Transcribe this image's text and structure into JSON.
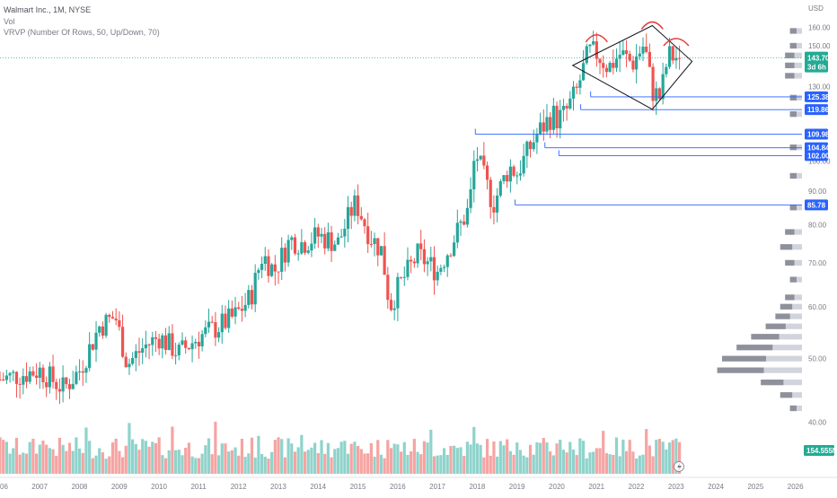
{
  "header": {
    "title": "Walmart Inc., 1M, NYSE",
    "vol_label": "Vol",
    "vrvp_label": "VRVP (Number Of Rows, 50, Up/Down, 70)"
  },
  "price_axis": {
    "currency": "USD",
    "ticks": [
      {
        "value": 160,
        "label": "160.00"
      },
      {
        "value": 150,
        "label": "150.00"
      },
      {
        "value": 130,
        "label": "130.00"
      },
      {
        "value": 100,
        "label": "100.00"
      },
      {
        "value": 90,
        "label": "90.00"
      },
      {
        "value": 80,
        "label": "80.00"
      },
      {
        "value": 70,
        "label": "70.00"
      },
      {
        "value": 60,
        "label": "60.00"
      },
      {
        "value": 50,
        "label": "50.00"
      },
      {
        "value": 40,
        "label": "40.00"
      }
    ]
  },
  "current_price": {
    "value": 143.7,
    "label": "143.70",
    "countdown": "3d 6h",
    "color": "#22ab94"
  },
  "volume_tag": {
    "label": "154.555M",
    "color": "#22ab94"
  },
  "time_axis": {
    "labels": [
      {
        "year": 2006,
        "label": "06"
      },
      {
        "year": 2007,
        "label": "2007"
      },
      {
        "year": 2008,
        "label": "2008"
      },
      {
        "year": 2009,
        "label": "2009"
      },
      {
        "year": 2010,
        "label": "2010"
      },
      {
        "year": 2011,
        "label": "2011"
      },
      {
        "year": 2012,
        "label": "2012"
      },
      {
        "year": 2013,
        "label": "2013"
      },
      {
        "year": 2014,
        "label": "2014"
      },
      {
        "year": 2015,
        "label": "2015"
      },
      {
        "year": 2016,
        "label": "2016"
      },
      {
        "year": 2017,
        "label": "2017"
      },
      {
        "year": 2018,
        "label": "2018"
      },
      {
        "year": 2019,
        "label": "2019"
      },
      {
        "year": 2020,
        "label": "2020"
      },
      {
        "year": 2021,
        "label": "2021"
      },
      {
        "year": 2022,
        "label": "2022"
      },
      {
        "year": 2023,
        "label": "2023"
      },
      {
        "year": 2024,
        "label": "2024"
      },
      {
        "year": 2025,
        "label": "2025"
      },
      {
        "year": 2026,
        "label": "2026"
      }
    ]
  },
  "colors": {
    "up": "#26a69a",
    "down": "#ef5350",
    "vol_up": "#8fd3cb",
    "vol_down": "#f5a4a2",
    "level": "#2962ff",
    "tag": "#2962ff",
    "pattern": "#131722",
    "arc": "#e53935",
    "profile_light": "#d1d4dc",
    "profile_dark": "#868993"
  },
  "levels": [
    {
      "value": 125.38,
      "label": "125.38",
      "from": 2020.85
    },
    {
      "value": 119.86,
      "label": "119.86",
      "from": 2020.6
    },
    {
      "value": 109.98,
      "label": "109.98",
      "from": 2017.95
    },
    {
      "value": 104.84,
      "label": "104.84",
      "from": 2019.7
    },
    {
      "value": 102.0,
      "label": "102.00",
      "from": 2020.05
    },
    {
      "value": 85.78,
      "label": "85.78",
      "from": 2018.95
    }
  ],
  "chart_data": {
    "type": "candlestick",
    "symbol": "Walmart Inc.",
    "interval": "1M",
    "exchange": "NYSE",
    "y_scale": "log",
    "ylim": [
      38,
      170
    ],
    "xlim": [
      2006.0,
      2026.05
    ],
    "anchors": [
      [
        2006.0,
        46.5
      ],
      [
        2007.0,
        48
      ],
      [
        2007.6,
        45
      ],
      [
        2008.0,
        48
      ],
      [
        2008.5,
        56
      ],
      [
        2008.9,
        58
      ],
      [
        2009.2,
        49
      ],
      [
        2009.6,
        52
      ],
      [
        2010.0,
        54
      ],
      [
        2010.5,
        51
      ],
      [
        2011.0,
        54
      ],
      [
        2011.5,
        56
      ],
      [
        2011.9,
        58
      ],
      [
        2012.3,
        62
      ],
      [
        2012.6,
        72
      ],
      [
        2012.9,
        68
      ],
      [
        2013.3,
        76
      ],
      [
        2013.6,
        75
      ],
      [
        2014.0,
        77
      ],
      [
        2014.5,
        75
      ],
      [
        2014.9,
        86
      ],
      [
        2015.0,
        85
      ],
      [
        2015.3,
        77
      ],
      [
        2015.6,
        73
      ],
      [
        2015.8,
        60
      ],
      [
        2016.0,
        64
      ],
      [
        2016.5,
        72
      ],
      [
        2017.0,
        68
      ],
      [
        2017.4,
        76
      ],
      [
        2017.8,
        85
      ],
      [
        2017.95,
        104
      ],
      [
        2018.1,
        97
      ],
      [
        2018.4,
        86
      ],
      [
        2018.8,
        98
      ],
      [
        2019.0,
        96
      ],
      [
        2019.5,
        110
      ],
      [
        2019.9,
        118
      ],
      [
        2020.0,
        116
      ],
      [
        2020.2,
        118
      ],
      [
        2020.5,
        128
      ],
      [
        2020.8,
        147
      ],
      [
        2021.0,
        146
      ],
      [
        2021.3,
        139
      ],
      [
        2021.6,
        146
      ],
      [
        2021.9,
        141
      ],
      [
        2022.2,
        151
      ],
      [
        2022.4,
        128
      ],
      [
        2022.6,
        125
      ],
      [
        2022.8,
        145
      ],
      [
        2023.0,
        144
      ],
      [
        2023.1,
        143.7
      ]
    ],
    "diamond_pattern": [
      [
        2020.4,
        140
      ],
      [
        2022.4,
        161
      ],
      [
        2023.4,
        142
      ],
      [
        2022.4,
        120
      ]
    ],
    "volume_profile_rows": [
      {
        "price": 42,
        "total": 1
      },
      {
        "price": 44,
        "total": 3
      },
      {
        "price": 46,
        "total": 7
      },
      {
        "price": 48,
        "total": 16
      },
      {
        "price": 50,
        "total": 15
      },
      {
        "price": 52,
        "total": 12
      },
      {
        "price": 54,
        "total": 9
      },
      {
        "price": 56,
        "total": 6
      },
      {
        "price": 58,
        "total": 4
      },
      {
        "price": 60,
        "total": 3
      },
      {
        "price": 62,
        "total": 2
      },
      {
        "price": 66,
        "total": 1
      },
      {
        "price": 70,
        "total": 2
      },
      {
        "price": 74,
        "total": 3
      },
      {
        "price": 78,
        "total": 2
      },
      {
        "price": 85,
        "total": 1
      },
      {
        "price": 95,
        "total": 1
      },
      {
        "price": 105,
        "total": 1
      },
      {
        "price": 118,
        "total": 1
      },
      {
        "price": 125,
        "total": 1
      },
      {
        "price": 135,
        "total": 2
      },
      {
        "price": 140,
        "total": 2
      },
      {
        "price": 145,
        "total": 2
      },
      {
        "price": 150,
        "total": 1
      },
      {
        "price": 158,
        "total": 1
      }
    ]
  }
}
